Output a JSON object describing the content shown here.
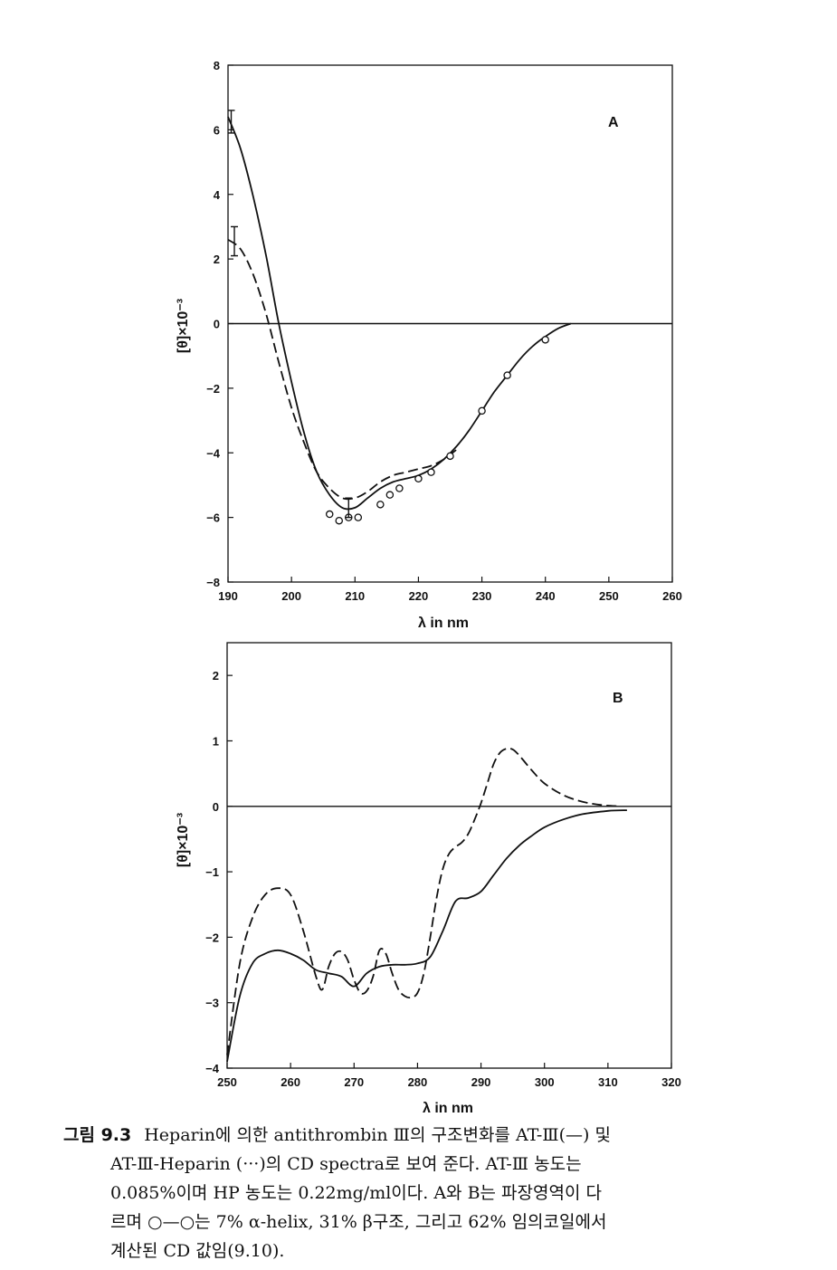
{
  "chart_data": [
    {
      "type": "line",
      "panel_label": "A",
      "xlabel": "λ in nm",
      "ylabel": "[θ]×10⁻³",
      "xlim": [
        190,
        260
      ],
      "ylim": [
        -8,
        8
      ],
      "x_ticks": [
        190,
        200,
        210,
        220,
        230,
        240,
        250,
        260
      ],
      "y_ticks": [
        8,
        6,
        4,
        2,
        0,
        -2,
        -4,
        -6,
        -8
      ],
      "zero_line": true,
      "series": [
        {
          "style": "solid",
          "x": [
            190,
            192,
            194,
            196,
            198,
            200,
            202,
            204,
            206,
            208,
            210,
            212,
            214,
            216,
            218,
            220,
            222,
            224,
            226,
            228,
            230,
            232,
            234,
            236,
            238,
            240,
            242,
            244
          ],
          "y": [
            6.4,
            5.4,
            3.9,
            2.1,
            0.0,
            -1.8,
            -3.4,
            -4.6,
            -5.3,
            -5.7,
            -5.7,
            -5.4,
            -5.1,
            -4.9,
            -4.8,
            -4.7,
            -4.5,
            -4.2,
            -3.8,
            -3.3,
            -2.7,
            -2.1,
            -1.6,
            -1.1,
            -0.7,
            -0.4,
            -0.15,
            0.0
          ]
        },
        {
          "style": "dashed",
          "x": [
            190,
            192,
            194,
            196,
            198,
            200,
            202,
            204,
            206,
            208,
            210,
            212,
            214,
            216,
            218,
            220,
            222,
            224,
            226
          ],
          "y": [
            2.6,
            2.3,
            1.5,
            0.3,
            -1.2,
            -2.6,
            -3.7,
            -4.6,
            -5.1,
            -5.4,
            -5.4,
            -5.2,
            -4.9,
            -4.7,
            -4.6,
            -4.5,
            -4.4,
            -4.2,
            -3.9
          ]
        },
        {
          "style": "circles",
          "x": [
            206,
            207.5,
            209,
            210.5,
            214,
            215.5,
            217,
            220,
            222,
            225,
            230,
            234,
            240
          ],
          "y": [
            -5.9,
            -6.1,
            -6.0,
            -6.0,
            -5.6,
            -5.3,
            -5.1,
            -4.8,
            -4.6,
            -4.1,
            -2.7,
            -1.6,
            -0.5
          ]
        }
      ],
      "error_bars": [
        {
          "x": 190.5,
          "y": 5.9,
          "low": 5.9,
          "high": 6.6
        },
        {
          "x": 191,
          "y": 2.6,
          "low": 2.1,
          "high": 3.0
        },
        {
          "x": 209,
          "y": -5.7,
          "low": -6.0,
          "high": -5.4
        }
      ]
    },
    {
      "type": "line",
      "panel_label": "B",
      "xlabel": "λ in nm",
      "ylabel": "[θ]×10⁻³",
      "xlim": [
        250,
        320
      ],
      "ylim": [
        -4,
        2.5
      ],
      "x_ticks": [
        250,
        260,
        270,
        280,
        290,
        300,
        310,
        320
      ],
      "y_ticks": [
        2,
        1,
        0,
        -1,
        -2,
        -3,
        -4
      ],
      "zero_line": true,
      "series": [
        {
          "style": "solid",
          "x": [
            250,
            252,
            254,
            256,
            258,
            260,
            262,
            264,
            266,
            268,
            270,
            272,
            274,
            276,
            278,
            280,
            282,
            284,
            286,
            288,
            290,
            292,
            294,
            296,
            298,
            300,
            303,
            306,
            310,
            313
          ],
          "y": [
            -3.9,
            -2.9,
            -2.4,
            -2.25,
            -2.2,
            -2.25,
            -2.35,
            -2.5,
            -2.55,
            -2.6,
            -2.75,
            -2.55,
            -2.45,
            -2.42,
            -2.42,
            -2.4,
            -2.3,
            -1.9,
            -1.45,
            -1.4,
            -1.3,
            -1.05,
            -0.8,
            -0.6,
            -0.45,
            -0.32,
            -0.2,
            -0.12,
            -0.07,
            -0.06
          ]
        },
        {
          "style": "dashed",
          "x": [
            250,
            252,
            254,
            256,
            258,
            260,
            262,
            264,
            265,
            266,
            267,
            268,
            269,
            270,
            271,
            272,
            273,
            274,
            275,
            276,
            277,
            278,
            279,
            280,
            281,
            282,
            283,
            284,
            285,
            286,
            287,
            288,
            289,
            290,
            291,
            292,
            293,
            294,
            295,
            296,
            298,
            300,
            303,
            306,
            309,
            312
          ],
          "y": [
            -3.8,
            -2.4,
            -1.7,
            -1.35,
            -1.25,
            -1.35,
            -1.9,
            -2.6,
            -2.8,
            -2.45,
            -2.25,
            -2.22,
            -2.35,
            -2.65,
            -2.85,
            -2.82,
            -2.6,
            -2.2,
            -2.25,
            -2.55,
            -2.8,
            -2.9,
            -2.92,
            -2.85,
            -2.55,
            -2.0,
            -1.4,
            -0.95,
            -0.72,
            -0.62,
            -0.55,
            -0.42,
            -0.2,
            0.05,
            0.35,
            0.65,
            0.82,
            0.88,
            0.87,
            0.78,
            0.55,
            0.35,
            0.17,
            0.07,
            0.02,
            0.0
          ]
        }
      ]
    }
  ],
  "caption": {
    "label": "그림 9.3",
    "lines": [
      "Heparin에 의한 antithrombin Ⅲ의 구조변화를 AT-Ⅲ(—) 및",
      "AT-Ⅲ-Heparin (···)의 CD spectra로 보여 준다. AT-Ⅲ 농도는",
      "0.085%이며 HP 농도는 0.22mg/ml이다. A와 B는 파장영역이 다",
      "르며 ○—○는 7% α-helix, 31% β구조, 그리고 62% 임의코일에서",
      "계산된 CD 값임(9.10)."
    ]
  }
}
